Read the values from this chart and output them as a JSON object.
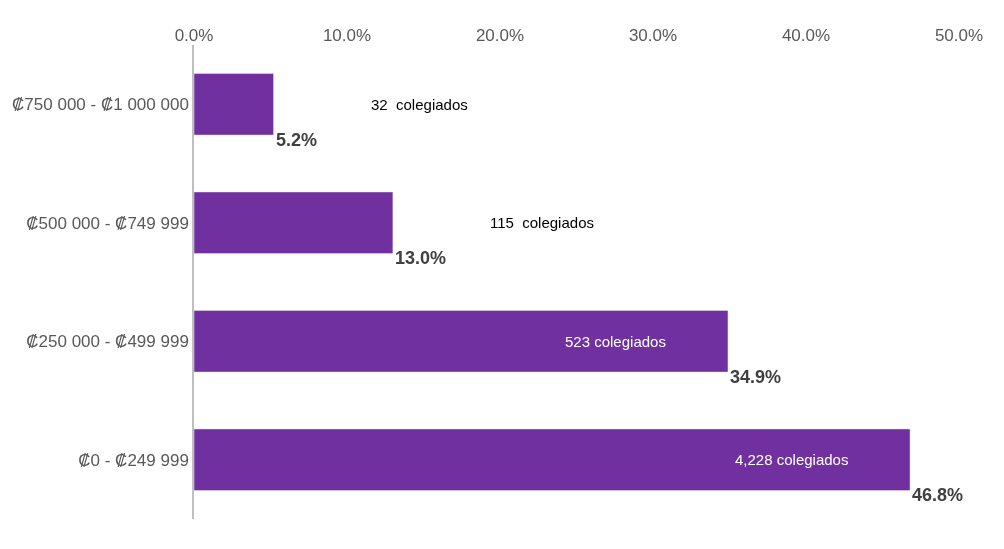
{
  "chart_data": {
    "type": "bar",
    "orientation": "horizontal",
    "categories": [
      "₡750 000 - ₡1 000 000",
      "₡500 000 - ₡749 999",
      "₡250 000 - ₡499 999",
      "₡0 - ₡249 999"
    ],
    "values": [
      5.2,
      13.0,
      34.9,
      46.8
    ],
    "value_labels": [
      "5.2%",
      "13.0%",
      "34.9%",
      "46.8%"
    ],
    "color": "#7030a0",
    "xlim": [
      0,
      50
    ],
    "xticks": [
      {
        "value": 0,
        "label": "0.0%"
      },
      {
        "value": 10,
        "label": "10.0%"
      },
      {
        "value": 20,
        "label": "20.0%"
      },
      {
        "value": 30,
        "label": "30.0%"
      },
      {
        "value": 40,
        "label": "40.0%"
      },
      {
        "value": 50,
        "label": "50.0%"
      }
    ],
    "legend": false,
    "annotations": [
      "32  colegiados",
      "115  colegiados",
      "523 colegiados",
      "4,228 colegiados"
    ]
  }
}
